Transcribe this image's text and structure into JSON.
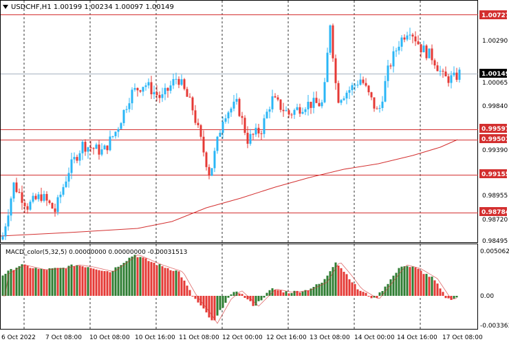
{
  "header": {
    "symbol_line": "USDCHF,H1  1.00199 1.00234 1.00097 1.00149"
  },
  "indicator": {
    "label": "MACD_color(5,32,5) 0.00000000 0.00000000 -0.00031513",
    "levels": [
      "0.0050623",
      "0.00",
      "-0.003363"
    ]
  },
  "price_axis": {
    "ticks": [
      "1.00290",
      "1.00065",
      "0.99840",
      "0.99390",
      "0.98955",
      "0.98720",
      "0.98495"
    ],
    "current": "1.00149",
    "lines": [
      {
        "label": "1.00727",
        "value": 1.00727
      },
      {
        "label": "0.99597",
        "value": 0.99597
      },
      {
        "label": "0.99501",
        "value": 0.99501
      },
      {
        "label": "0.99155",
        "value": 0.99155
      },
      {
        "label": "0.98784",
        "value": 0.98784
      }
    ]
  },
  "time_axis": [
    "6 Oct 2022",
    "7 Oct 08:00",
    "10 Oct 08:00",
    "10 Oct 16:00",
    "11 Oct 08:00",
    "12 Oct 00:00",
    "12 Oct 16:00",
    "13 Oct 08:00",
    "14 Oct 00:00",
    "14 Oct 16:00",
    "17 Oct 08:00"
  ],
  "colors": {
    "bull": "#29b6f6",
    "bear": "#e53935",
    "hist_up": "#2e7d32",
    "hist_down": "#e53935",
    "lines": "#d32f2f",
    "ma": "#d32f2f"
  }
}
